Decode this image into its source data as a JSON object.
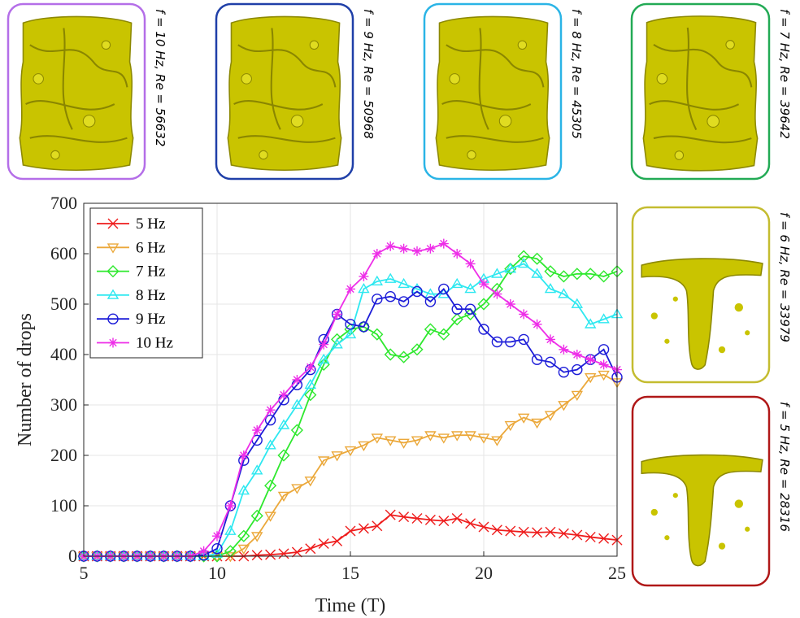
{
  "panels": [
    {
      "label": "f = 10 Hz, Re = 56632",
      "color": "#b46ee8"
    },
    {
      "label": "f = 9 Hz, Re = 50968",
      "color": "#1f3fa8"
    },
    {
      "label": "f = 8 Hz, Re = 45305",
      "color": "#2ab4e6"
    },
    {
      "label": "f = 7 Hz, Re = 39642",
      "color": "#22aa55"
    },
    {
      "label": "f = 6 Hz, Re = 33979",
      "color": "#c4bc30"
    },
    {
      "label": "f = 5 Hz, Re = 28316",
      "color": "#b01818"
    }
  ],
  "chart_data": {
    "type": "line",
    "xlabel": "Time (T)",
    "ylabel": "Number of drops",
    "x": [
      5,
      5.5,
      6,
      6.5,
      7,
      7.5,
      8,
      8.5,
      9,
      9.5,
      10,
      10.5,
      11,
      11.5,
      12,
      12.5,
      13,
      13.5,
      14,
      14.5,
      15,
      15.5,
      16,
      16.5,
      17,
      17.5,
      18,
      18.5,
      19,
      19.5,
      20,
      20.5,
      21,
      21.5,
      22,
      22.5,
      23,
      23.5,
      24,
      24.5,
      25
    ],
    "series": [
      {
        "name": "5 Hz",
        "color": "#ee1c1c",
        "marker": "x",
        "values": [
          0,
          0,
          0,
          0,
          0,
          0,
          0,
          0,
          0,
          0,
          0,
          0,
          0,
          2,
          3,
          5,
          8,
          15,
          25,
          30,
          50,
          55,
          60,
          82,
          78,
          75,
          72,
          70,
          75,
          65,
          58,
          52,
          50,
          48,
          47,
          48,
          45,
          42,
          38,
          35,
          32
        ]
      },
      {
        "name": "6 Hz",
        "color": "#eba83a",
        "marker": "triangle-down",
        "values": [
          0,
          0,
          0,
          0,
          0,
          0,
          0,
          0,
          0,
          0,
          0,
          0,
          15,
          40,
          80,
          120,
          135,
          150,
          190,
          200,
          210,
          220,
          235,
          230,
          225,
          230,
          240,
          235,
          240,
          240,
          235,
          230,
          260,
          275,
          265,
          280,
          300,
          320,
          355,
          360,
          345
        ]
      },
      {
        "name": "7 Hz",
        "color": "#2ee82e",
        "marker": "diamond",
        "values": [
          0,
          0,
          0,
          0,
          0,
          0,
          0,
          0,
          0,
          0,
          0,
          10,
          40,
          80,
          140,
          200,
          250,
          320,
          380,
          430,
          450,
          455,
          440,
          400,
          395,
          410,
          450,
          440,
          470,
          480,
          500,
          530,
          570,
          595,
          590,
          565,
          555,
          560,
          560,
          555,
          565
        ]
      },
      {
        "name": "8 Hz",
        "color": "#2ee8f0",
        "marker": "triangle-up",
        "values": [
          0,
          0,
          0,
          0,
          0,
          0,
          0,
          0,
          0,
          0,
          5,
          50,
          130,
          170,
          220,
          260,
          300,
          340,
          390,
          420,
          440,
          530,
          545,
          550,
          540,
          530,
          520,
          520,
          540,
          530,
          550,
          560,
          570,
          580,
          560,
          530,
          520,
          500,
          460,
          470,
          480
        ]
      },
      {
        "name": "9 Hz",
        "color": "#1c1cd8",
        "marker": "circle",
        "values": [
          0,
          0,
          0,
          0,
          0,
          0,
          0,
          0,
          0,
          2,
          15,
          100,
          190,
          230,
          270,
          310,
          340,
          370,
          430,
          480,
          460,
          455,
          510,
          515,
          505,
          525,
          505,
          530,
          490,
          490,
          450,
          425,
          425,
          430,
          390,
          385,
          365,
          370,
          390,
          410,
          355
        ]
      },
      {
        "name": "10 Hz",
        "color": "#ee2ee8",
        "marker": "asterisk",
        "values": [
          0,
          0,
          0,
          0,
          0,
          0,
          0,
          0,
          0,
          10,
          40,
          100,
          200,
          250,
          290,
          320,
          350,
          375,
          420,
          480,
          530,
          555,
          600,
          615,
          610,
          605,
          610,
          620,
          600,
          580,
          540,
          520,
          500,
          480,
          460,
          430,
          410,
          400,
          390,
          380,
          370
        ]
      }
    ],
    "xlim": [
      5,
      25
    ],
    "xticks": [
      5,
      10,
      15,
      20,
      25
    ],
    "ylim": [
      0,
      700
    ],
    "yticks": [
      0,
      100,
      200,
      300,
      400,
      500,
      600,
      700
    ],
    "grid": true,
    "legend": "upper-left"
  }
}
